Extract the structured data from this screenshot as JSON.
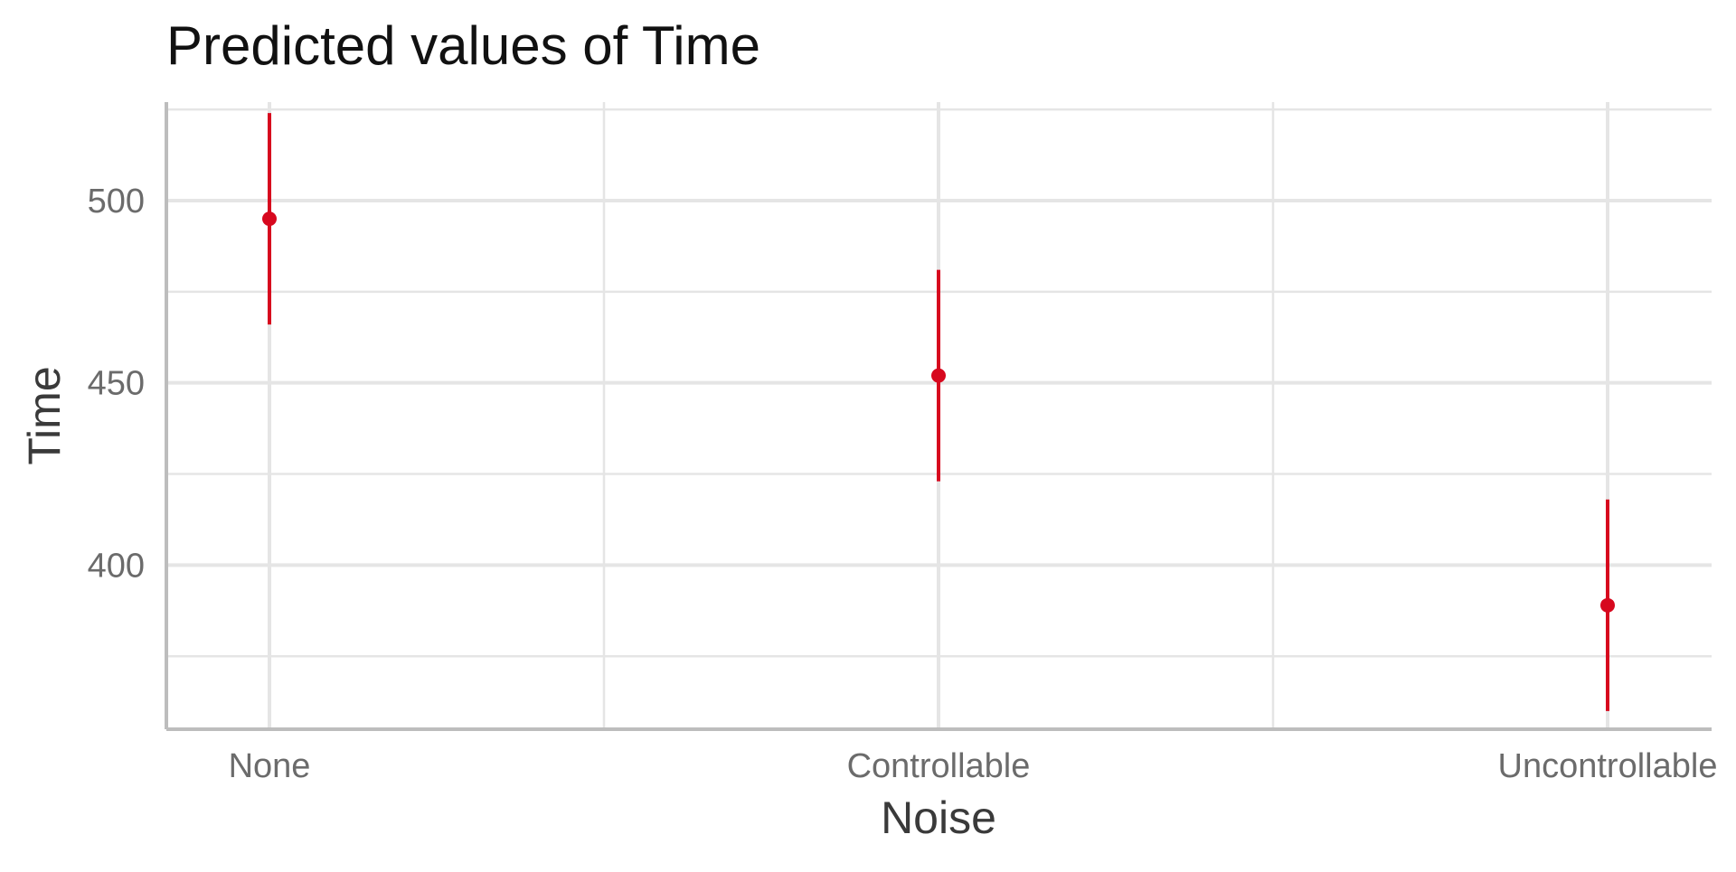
{
  "chart_data": {
    "type": "scatter",
    "title": "Predicted values of Time",
    "xlabel": "Noise",
    "ylabel": "Time",
    "categories": [
      "None",
      "Controllable",
      "Uncontrollable"
    ],
    "y_ticks": [
      400,
      450,
      500
    ],
    "ylim": [
      355,
      527
    ],
    "grid": true,
    "series": [
      {
        "values": [
          495,
          452,
          389
        ],
        "ci_low": [
          466,
          423,
          360
        ],
        "ci_high": [
          524,
          481,
          418
        ]
      }
    ],
    "colors": {
      "point": "#d7081e",
      "grid": "#e5e5e5",
      "axis": "#bdbdbd",
      "tick_text": "#6b6b6b",
      "label_text": "#3a3a3a",
      "title_text": "#111111"
    }
  }
}
